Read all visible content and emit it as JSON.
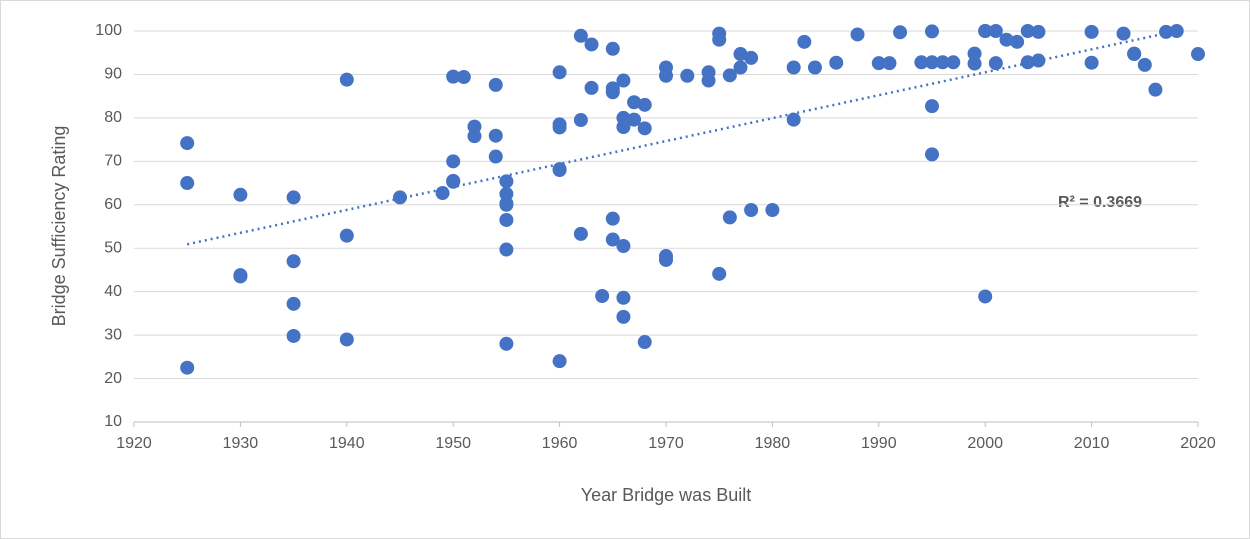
{
  "chart_data": {
    "type": "scatter",
    "x_label": "Year Bridge was Built",
    "y_label": "Bridge Sufficiency Rating",
    "annotation": "R² = 0.3669",
    "color": "#4472c4",
    "grid": true,
    "xlim": [
      1920,
      2020
    ],
    "xticks": [
      1920,
      1930,
      1940,
      1950,
      1960,
      1970,
      1980,
      1990,
      2000,
      2010,
      2020
    ],
    "ylim": [
      10,
      100
    ],
    "yticks": [
      10,
      20,
      30,
      40,
      50,
      60,
      70,
      80,
      90,
      100
    ],
    "x": [
      1925,
      1925,
      1925,
      1930,
      1930,
      1930,
      1935,
      1935,
      1935,
      1935,
      1940,
      1940,
      1940,
      1945,
      1949,
      1950,
      1950,
      1950,
      1950,
      1951,
      1952,
      1952,
      1954,
      1954,
      1954,
      1955,
      1955,
      1955,
      1955,
      1955,
      1955,
      1955,
      1960,
      1960,
      1960,
      1960,
      1960,
      1960,
      1962,
      1962,
      1962,
      1963,
      1963,
      1964,
      1965,
      1965,
      1965,
      1965,
      1965,
      1966,
      1966,
      1966,
      1966,
      1966,
      1966,
      1967,
      1967,
      1968,
      1968,
      1968,
      1970,
      1970,
      1970,
      1970,
      1972,
      1974,
      1974,
      1975,
      1975,
      1975,
      1976,
      1976,
      1977,
      1977,
      1978,
      1978,
      1980,
      1982,
      1982,
      1983,
      1984,
      1986,
      1988,
      1990,
      1991,
      1992,
      1994,
      1995,
      1995,
      1995,
      1995,
      1996,
      1997,
      1999,
      1999,
      2000,
      2000,
      2000,
      2001,
      2001,
      2002,
      2003,
      2004,
      2004,
      2005,
      2005,
      2010,
      2010,
      2013,
      2014,
      2014,
      2015,
      2016,
      2017,
      2018,
      2020
    ],
    "values": [
      74.2,
      65,
      22.5,
      62.3,
      43.8,
      43.5,
      61.7,
      47,
      37.2,
      29.8,
      88.8,
      52.9,
      29,
      61.7,
      62.7,
      89.5,
      70,
      65.5,
      65.3,
      89.4,
      78,
      75.8,
      87.6,
      75.9,
      71.1,
      65.4,
      62.5,
      60.3,
      60,
      56.5,
      49.7,
      28,
      90.5,
      78.5,
      77.8,
      68.2,
      68,
      24,
      98.9,
      79.5,
      53.3,
      96.9,
      86.9,
      39,
      95.9,
      86.8,
      85.9,
      56.8,
      52,
      88.6,
      80,
      77.9,
      50.5,
      38.6,
      34.2,
      83.6,
      79.6,
      83,
      77.6,
      28.4,
      91.6,
      89.7,
      48.2,
      47.3,
      89.7,
      90.5,
      88.6,
      99.4,
      98,
      44.1,
      89.8,
      57.1,
      94.7,
      91.6,
      93.8,
      58.8,
      58.8,
      91.6,
      79.6,
      97.5,
      91.6,
      92.7,
      99.2,
      92.6,
      92.6,
      99.7,
      92.8,
      99.9,
      92.8,
      82.7,
      71.6,
      92.8,
      92.8,
      94.8,
      92.5,
      100,
      100,
      38.9,
      100,
      92.6,
      98,
      97.5,
      100,
      92.8,
      99.8,
      93.2,
      99.8,
      92.7,
      99.4,
      94.8,
      94.7,
      92.2,
      86.5,
      99.8,
      100,
      94.7
    ],
    "trendline": {
      "x": [
        1925,
        2018
      ],
      "values": [
        50.9,
        100
      ]
    }
  }
}
